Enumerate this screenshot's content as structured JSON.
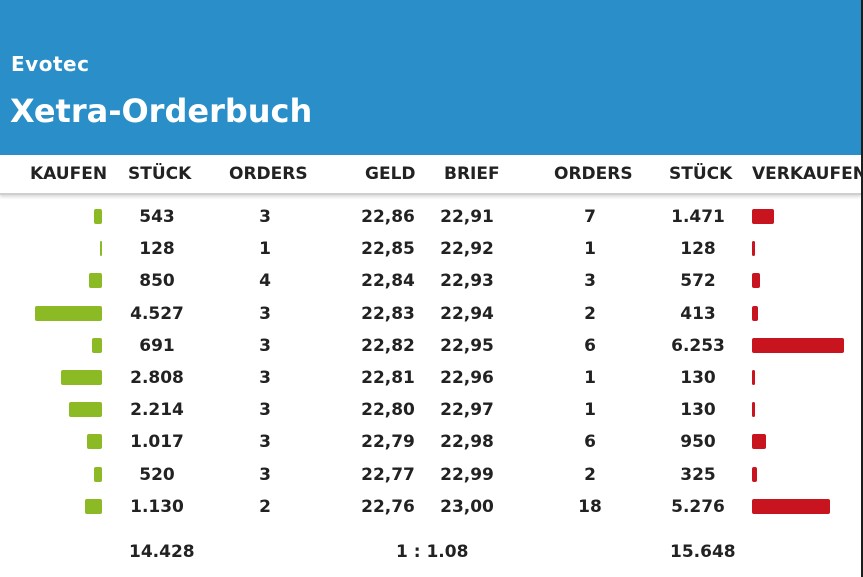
{
  "header": {
    "company": "Evotec",
    "title": "Xetra-Orderbuch"
  },
  "columns": {
    "buy": "KAUFEN",
    "buy_qty": "STÜCK",
    "buy_orders": "ORDERS",
    "bid": "GELD",
    "ask": "BRIEF",
    "sell_orders": "ORDERS",
    "sell_qty": "STÜCK",
    "sell": "VERKAUFEN"
  },
  "colors": {
    "header_bg": "#2a8fc9",
    "buy_bar": "#8cba24",
    "sell_bar": "#c8141f"
  },
  "rows": [
    {
      "buy_qty": "543",
      "buy_orders": "3",
      "bid": "22,86",
      "ask": "22,91",
      "sell_orders": "7",
      "sell_qty": "1.471",
      "buy_value": 543,
      "sell_value": 1471
    },
    {
      "buy_qty": "128",
      "buy_orders": "1",
      "bid": "22,85",
      "ask": "22,92",
      "sell_orders": "1",
      "sell_qty": "128",
      "buy_value": 128,
      "sell_value": 128
    },
    {
      "buy_qty": "850",
      "buy_orders": "4",
      "bid": "22,84",
      "ask": "22,93",
      "sell_orders": "3",
      "sell_qty": "572",
      "buy_value": 850,
      "sell_value": 572
    },
    {
      "buy_qty": "4.527",
      "buy_orders": "3",
      "bid": "22,83",
      "ask": "22,94",
      "sell_orders": "2",
      "sell_qty": "413",
      "buy_value": 4527,
      "sell_value": 413
    },
    {
      "buy_qty": "691",
      "buy_orders": "3",
      "bid": "22,82",
      "ask": "22,95",
      "sell_orders": "6",
      "sell_qty": "6.253",
      "buy_value": 691,
      "sell_value": 6253
    },
    {
      "buy_qty": "2.808",
      "buy_orders": "3",
      "bid": "22,81",
      "ask": "22,96",
      "sell_orders": "1",
      "sell_qty": "130",
      "buy_value": 2808,
      "sell_value": 130
    },
    {
      "buy_qty": "2.214",
      "buy_orders": "3",
      "bid": "22,80",
      "ask": "22,97",
      "sell_orders": "1",
      "sell_qty": "130",
      "buy_value": 2214,
      "sell_value": 130
    },
    {
      "buy_qty": "1.017",
      "buy_orders": "3",
      "bid": "22,79",
      "ask": "22,98",
      "sell_orders": "6",
      "sell_qty": "950",
      "buy_value": 1017,
      "sell_value": 950
    },
    {
      "buy_qty": "520",
      "buy_orders": "3",
      "bid": "22,77",
      "ask": "22,99",
      "sell_orders": "2",
      "sell_qty": "325",
      "buy_value": 520,
      "sell_value": 325
    },
    {
      "buy_qty": "1.130",
      "buy_orders": "2",
      "bid": "22,76",
      "ask": "23,00",
      "sell_orders": "18",
      "sell_qty": "5.276",
      "buy_value": 1130,
      "sell_value": 5276
    }
  ],
  "footer": {
    "buy_total": "14.428",
    "ratio": "1 : 1.08",
    "sell_total": "15.648"
  }
}
